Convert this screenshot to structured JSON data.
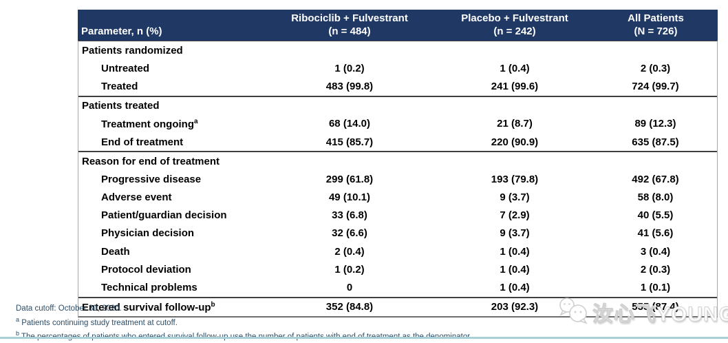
{
  "table": {
    "header": [
      {
        "title": "Parameter, n (%)",
        "subtitle": ""
      },
      {
        "title": "Ribociclib + Fulvestrant",
        "subtitle": "(n = 484)"
      },
      {
        "title": "Placebo + Fulvestrant",
        "subtitle": "(n = 242)"
      },
      {
        "title": "All Patients",
        "subtitle": "(N = 726)"
      }
    ],
    "rows": [
      {
        "label": "Patients randomized",
        "sup": "",
        "style": "section",
        "divider": false,
        "values": [
          "",
          "",
          ""
        ]
      },
      {
        "label": "Untreated",
        "sup": "",
        "style": "indent",
        "divider": false,
        "values": [
          "1 (0.2)",
          "1 (0.4)",
          "2 (0.3)"
        ]
      },
      {
        "label": "Treated",
        "sup": "",
        "style": "indent",
        "divider": false,
        "values": [
          "483 (99.8)",
          "241 (99.6)",
          "724 (99.7)"
        ]
      },
      {
        "label": "Patients treated",
        "sup": "",
        "style": "section",
        "divider": true,
        "values": [
          "",
          "",
          ""
        ]
      },
      {
        "label": "Treatment ongoing",
        "sup": "a",
        "style": "indent",
        "divider": false,
        "values": [
          "68 (14.0)",
          "21 (8.7)",
          "89 (12.3)"
        ]
      },
      {
        "label": "End of treatment",
        "sup": "",
        "style": "indent",
        "divider": false,
        "values": [
          "415 (85.7)",
          "220 (90.9)",
          "635 (87.5)"
        ]
      },
      {
        "label": "Reason for end of treatment",
        "sup": "",
        "style": "section",
        "divider": true,
        "values": [
          "",
          "",
          ""
        ]
      },
      {
        "label": "Progressive disease",
        "sup": "",
        "style": "indent",
        "divider": false,
        "values": [
          "299 (61.8)",
          "193 (79.8)",
          "492 (67.8)"
        ]
      },
      {
        "label": "Adverse event",
        "sup": "",
        "style": "indent",
        "divider": false,
        "values": [
          "49 (10.1)",
          "9 (3.7)",
          "58 (8.0)"
        ]
      },
      {
        "label": "Patient/guardian decision",
        "sup": "",
        "style": "indent",
        "divider": false,
        "values": [
          "33 (6.8)",
          "7 (2.9)",
          "40 (5.5)"
        ]
      },
      {
        "label": "Physician decision",
        "sup": "",
        "style": "indent",
        "divider": false,
        "values": [
          "32 (6.6)",
          "9 (3.7)",
          "41 (5.6)"
        ]
      },
      {
        "label": "Death",
        "sup": "",
        "style": "indent",
        "divider": false,
        "values": [
          "2 (0.4)",
          "1 (0.4)",
          "3 (0.4)"
        ]
      },
      {
        "label": "Protocol deviation",
        "sup": "",
        "style": "indent",
        "divider": false,
        "values": [
          "1 (0.2)",
          "1 (0.4)",
          "2 (0.3)"
        ]
      },
      {
        "label": "Technical problems",
        "sup": "",
        "style": "indent",
        "divider": false,
        "values": [
          "0",
          "1 (0.4)",
          "1 (0.1)"
        ]
      },
      {
        "label": "Entered survival follow-up",
        "sup": "b",
        "style": "section",
        "divider": true,
        "values": [
          "352 (84.8)",
          "203 (92.3)",
          "555 (87.4)"
        ]
      }
    ],
    "colors": {
      "header_bg": "#1f3864",
      "header_text": "#ffffff",
      "section_divider": "#3f3f3f",
      "outer_border": "#a6a6a6"
    }
  },
  "footnotes": [
    {
      "sup": "",
      "text": "Data cutoff: October 30, 2020."
    },
    {
      "sup": "a",
      "text": "Patients continuing study treatment at cutoff."
    },
    {
      "sup": "b",
      "text": "The percentages of patients who entered survival follow-up use the number of patients with end of treatment as the denominator."
    }
  ],
  "watermark": {
    "text": "汝心飞YOUNG",
    "icon": "wechat-icon"
  },
  "page": {
    "bottom_rule_color": "#a9cfd7",
    "footnote_text_color": "#2e4d66"
  }
}
